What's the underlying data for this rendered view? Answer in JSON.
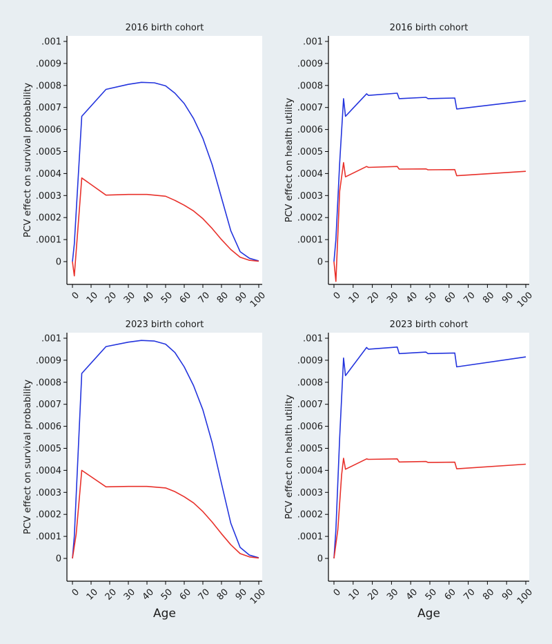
{
  "colors": {
    "figure_bg": "#e8eef2",
    "plot_bg": "#ffffff",
    "axis": "#000000",
    "blue": "#2233dd",
    "red": "#e8302a"
  },
  "chart_data": [
    {
      "type": "line",
      "title": "2016 birth cohort",
      "ylabel": "PCV effect on survival probability",
      "xlabel": "",
      "xlim": [
        0,
        100
      ],
      "ylim": [
        -0.0001,
        0.001
      ],
      "xticks": [
        "0",
        "10",
        "20",
        "30",
        "40",
        "50",
        "60",
        "70",
        "80",
        "90",
        "100"
      ],
      "yticks": [
        ".001",
        ".0009",
        ".0008",
        ".0007",
        ".0006",
        ".0005",
        ".0004",
        ".0003",
        ".0002",
        ".0001",
        "0"
      ],
      "grid": false,
      "series": [
        {
          "color": "blue",
          "points": [
            [
              0,
              0
            ],
            [
              1,
              8e-05
            ],
            [
              5,
              0.00066
            ],
            [
              18,
              0.000782
            ],
            [
              30,
              0.000805
            ],
            [
              37,
              0.000814
            ],
            [
              44,
              0.000812
            ],
            [
              50,
              0.000798
            ],
            [
              55,
              0.000765
            ],
            [
              60,
              0.000718
            ],
            [
              65,
              0.00065
            ],
            [
              70,
              0.00056
            ],
            [
              75,
              0.00044
            ],
            [
              80,
              0.00029
            ],
            [
              85,
              0.00014
            ],
            [
              90,
              4.5e-05
            ],
            [
              95,
              1.5e-05
            ],
            [
              100,
              3e-06
            ]
          ]
        },
        {
          "color": "red",
          "points": [
            [
              0,
              0
            ],
            [
              1,
              -6.5e-05
            ],
            [
              5,
              0.00038
            ],
            [
              18,
              0.000302
            ],
            [
              30,
              0.000305
            ],
            [
              40,
              0.000305
            ],
            [
              50,
              0.000297
            ],
            [
              55,
              0.000278
            ],
            [
              60,
              0.000256
            ],
            [
              65,
              0.00023
            ],
            [
              70,
              0.000195
            ],
            [
              75,
              0.00015
            ],
            [
              80,
              0.0001
            ],
            [
              85,
              5.5e-05
            ],
            [
              90,
              2e-05
            ],
            [
              95,
              6e-06
            ],
            [
              100,
              2e-06
            ]
          ]
        }
      ]
    },
    {
      "type": "line",
      "title": "2016 birth cohort",
      "ylabel": "PCV effect on health utility",
      "xlabel": "",
      "xlim": [
        0,
        100
      ],
      "ylim": [
        -0.0001,
        0.001
      ],
      "xticks": [
        "0",
        "10",
        "20",
        "30",
        "40",
        "50",
        "60",
        "70",
        "80",
        "90",
        "100"
      ],
      "yticks": [
        ".001",
        ".0009",
        ".0008",
        ".0007",
        ".0006",
        ".0005",
        ".0004",
        ".0003",
        ".0002",
        ".0001",
        "0"
      ],
      "grid": false,
      "series": [
        {
          "color": "blue",
          "points": [
            [
              0,
              0
            ],
            [
              1,
              0.0001
            ],
            [
              3,
              0.00045
            ],
            [
              5,
              0.00074
            ],
            [
              6,
              0.00066
            ],
            [
              17,
              0.000762
            ],
            [
              18,
              0.000755
            ],
            [
              33,
              0.000765
            ],
            [
              34,
              0.00074
            ],
            [
              48,
              0.000746
            ],
            [
              49,
              0.00074
            ],
            [
              63,
              0.000743
            ],
            [
              64,
              0.000693
            ],
            [
              100,
              0.00073
            ]
          ]
        },
        {
          "color": "red",
          "points": [
            [
              0,
              0
            ],
            [
              1,
              -9e-05
            ],
            [
              3,
              0.00032
            ],
            [
              5,
              0.00045
            ],
            [
              6,
              0.000385
            ],
            [
              17,
              0.000432
            ],
            [
              18,
              0.000428
            ],
            [
              33,
              0.000432
            ],
            [
              34,
              0.00042
            ],
            [
              48,
              0.000421
            ],
            [
              49,
              0.000417
            ],
            [
              63,
              0.000418
            ],
            [
              64,
              0.00039
            ],
            [
              100,
              0.00041
            ]
          ]
        }
      ]
    },
    {
      "type": "line",
      "title": "2023 birth cohort",
      "ylabel": "PCV effect on survival probability",
      "xlabel": "Age",
      "xlim": [
        0,
        100
      ],
      "ylim": [
        -0.0001,
        0.001
      ],
      "xticks": [
        "0",
        "10",
        "20",
        "30",
        "40",
        "50",
        "60",
        "70",
        "80",
        "90",
        "100"
      ],
      "yticks": [
        ".001",
        ".0009",
        ".0008",
        ".0007",
        ".0006",
        ".0005",
        ".0004",
        ".0003",
        ".0002",
        ".0001",
        "0"
      ],
      "grid": false,
      "series": [
        {
          "color": "blue",
          "points": [
            [
              0,
              0
            ],
            [
              1,
              0.0001
            ],
            [
              5,
              0.00084
            ],
            [
              18,
              0.000962
            ],
            [
              30,
              0.000982
            ],
            [
              37,
              0.00099
            ],
            [
              44,
              0.000987
            ],
            [
              50,
              0.000973
            ],
            [
              55,
              0.000935
            ],
            [
              60,
              0.00087
            ],
            [
              65,
              0.000785
            ],
            [
              70,
              0.000675
            ],
            [
              75,
              0.000525
            ],
            [
              80,
              0.00034
            ],
            [
              85,
              0.00016
            ],
            [
              90,
              5e-05
            ],
            [
              95,
              1.5e-05
            ],
            [
              100,
              3e-06
            ]
          ]
        },
        {
          "color": "red",
          "points": [
            [
              0,
              0
            ],
            [
              2,
              0.00011
            ],
            [
              5,
              0.0004
            ],
            [
              18,
              0.000325
            ],
            [
              30,
              0.000327
            ],
            [
              40,
              0.000327
            ],
            [
              50,
              0.00032
            ],
            [
              55,
              0.000303
            ],
            [
              60,
              0.00028
            ],
            [
              65,
              0.000252
            ],
            [
              70,
              0.000213
            ],
            [
              75,
              0.000165
            ],
            [
              80,
              0.000112
            ],
            [
              85,
              6.2e-05
            ],
            [
              90,
              2.2e-05
            ],
            [
              95,
              7e-06
            ],
            [
              100,
              2e-06
            ]
          ]
        }
      ]
    },
    {
      "type": "line",
      "title": "2023 birth cohort",
      "ylabel": "PCV effect on health utility",
      "xlabel": "Age",
      "xlim": [
        0,
        100
      ],
      "ylim": [
        -0.0001,
        0.001
      ],
      "xticks": [
        "0",
        "10",
        "20",
        "30",
        "40",
        "50",
        "60",
        "70",
        "80",
        "90",
        "100"
      ],
      "yticks": [
        ".001",
        ".0009",
        ".0008",
        ".0007",
        ".0006",
        ".0005",
        ".0004",
        ".0003",
        ".0002",
        ".0001",
        "0"
      ],
      "grid": false,
      "series": [
        {
          "color": "blue",
          "points": [
            [
              0,
              0
            ],
            [
              1,
              0.00013
            ],
            [
              3,
              0.00055
            ],
            [
              5,
              0.00091
            ],
            [
              6,
              0.00083
            ],
            [
              17,
              0.000958
            ],
            [
              18,
              0.00095
            ],
            [
              33,
              0.00096
            ],
            [
              34,
              0.00093
            ],
            [
              48,
              0.000937
            ],
            [
              49,
              0.00093
            ],
            [
              63,
              0.000933
            ],
            [
              64,
              0.00087
            ],
            [
              100,
              0.000915
            ]
          ]
        },
        {
          "color": "red",
          "points": [
            [
              0,
              0
            ],
            [
              2,
              0.00013
            ],
            [
              4,
              0.00038
            ],
            [
              5,
              0.000455
            ],
            [
              6,
              0.000405
            ],
            [
              17,
              0.000452
            ],
            [
              18,
              0.00045
            ],
            [
              33,
              0.000452
            ],
            [
              34,
              0.000438
            ],
            [
              48,
              0.00044
            ],
            [
              49,
              0.000436
            ],
            [
              63,
              0.000437
            ],
            [
              64,
              0.000407
            ],
            [
              100,
              0.000428
            ]
          ]
        }
      ]
    }
  ]
}
